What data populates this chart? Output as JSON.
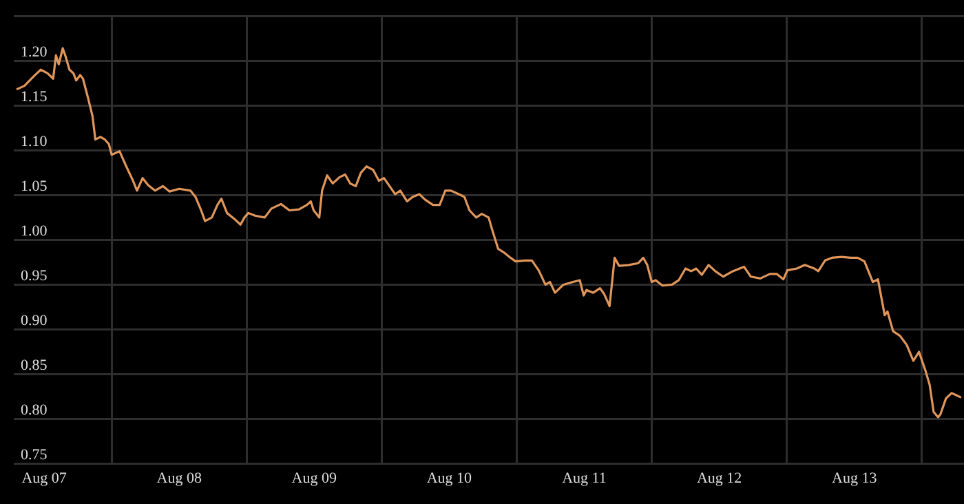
{
  "chart_data": {
    "type": "line",
    "grid": true,
    "marker": "none",
    "line_style": "solid",
    "legend": false,
    "xlim": [
      "--08-07T06:36",
      "--08-14T07:30"
    ],
    "xticks": [
      {
        "value": "--08-07T12:00",
        "label": "Aug 07"
      },
      {
        "value": "--08-08",
        "label": null
      },
      {
        "value": "--08-08T12:00",
        "label": "Aug 08"
      },
      {
        "value": "--08-09",
        "label": null
      },
      {
        "value": "--08-09T12:00",
        "label": "Aug 09"
      },
      {
        "value": "--08-10",
        "label": null
      },
      {
        "value": "--08-10T12:00",
        "label": "Aug 10"
      },
      {
        "value": "--08-11",
        "label": null
      },
      {
        "value": "--08-11T12:00",
        "label": "Aug 11"
      },
      {
        "value": "--08-12",
        "label": null
      },
      {
        "value": "--08-12T12:00",
        "label": "Aug 12"
      },
      {
        "value": "--08-13",
        "label": null
      },
      {
        "value": "--08-13T12:00",
        "label": "Aug 13"
      },
      {
        "value": "--08-14",
        "label": null
      }
    ],
    "ylim": [
      0.75,
      1.25
    ],
    "yticks": [
      {
        "value": 0.75,
        "label": "0.75"
      },
      {
        "value": 0.8,
        "label": "0.80"
      },
      {
        "value": 0.85,
        "label": "0.85"
      },
      {
        "value": 0.9,
        "label": "0.90"
      },
      {
        "value": 0.95,
        "label": "0.95"
      },
      {
        "value": 1.0,
        "label": "1.00"
      },
      {
        "value": 1.05,
        "label": "1.05"
      },
      {
        "value": 1.1,
        "label": "1.10"
      },
      {
        "value": 1.15,
        "label": "1.15"
      },
      {
        "value": 1.2,
        "label": "1.20"
      },
      {
        "value": 1.25,
        "label": null
      }
    ],
    "series": [
      {
        "color": "#e0965a",
        "x": [
          "--08-07T07:06",
          "--08-07T08:30",
          "--08-07T10:12",
          "--08-07T11:24",
          "--08-07T12:36",
          "--08-07T13:36",
          "--08-07T14:06",
          "--08-07T14:36",
          "--08-07T15:18",
          "--08-07T15:48",
          "--08-07T16:30",
          "--08-07T17:12",
          "--08-07T17:42",
          "--08-07T18:24",
          "--08-07T18:54",
          "--08-07T19:54",
          "--08-07T20:36",
          "--08-07T21:06",
          "--08-07T22:00",
          "--08-07T22:48",
          "--08-07T23:30",
          "--08-08T00:00",
          "--08-08T01:24",
          "--08-08T02:36",
          "--08-08T03:48",
          "--08-08T04:30",
          "--08-08T05:30",
          "--08-08T06:30",
          "--08-08T07:42",
          "--08-08T09:06",
          "--08-08T10:18",
          "--08-08T12:00",
          "--08-08T14:00",
          "--08-08T14:54",
          "--08-08T15:54",
          "--08-08T16:36",
          "--08-08T17:48",
          "--08-08T18:48",
          "--08-08T19:30",
          "--08-08T20:30",
          "--08-08T21:42",
          "--08-08T22:54",
          "--08-08T23:36",
          "--08-09T00:18",
          "--08-09T01:30",
          "--08-09T03:12",
          "--08-09T04:24",
          "--08-09T06:06",
          "--08-09T07:36",
          "--08-09T09:18",
          "--08-09T10:42",
          "--08-09T11:24",
          "--08-09T11:54",
          "--08-09T12:54",
          "--08-09T13:24",
          "--08-09T14:18",
          "--08-09T15:18",
          "--08-09T16:30",
          "--08-09T17:30",
          "--08-09T18:24",
          "--08-09T19:24",
          "--08-09T20:18",
          "--08-09T21:18",
          "--08-09T22:30",
          "--08-09T23:30",
          "--08-10T00:24",
          "--08-10T01:24",
          "--08-10T02:24",
          "--08-10T03:18",
          "--08-10T04:30",
          "--08-10T05:30",
          "--08-10T06:42",
          "--08-10T07:42",
          "--08-10T09:06",
          "--08-10T10:18",
          "--08-10T11:18",
          "--08-10T12:18",
          "--08-10T13:42",
          "--08-10T14:42",
          "--08-10T15:36",
          "--08-10T16:48",
          "--08-10T17:48",
          "--08-10T19:00",
          "--08-10T19:42",
          "--08-10T20:42",
          "--08-10T21:42",
          "--08-10T22:54",
          "--08-10T23:48",
          "--08-11T01:30",
          "--08-11T02:42",
          "--08-11T03:54",
          "--08-11T05:06",
          "--08-11T05:54",
          "--08-11T06:48",
          "--08-11T08:18",
          "--08-11T10:00",
          "--08-11T11:12",
          "--08-11T11:54",
          "--08-11T12:24",
          "--08-11T13:36",
          "--08-11T14:48",
          "--08-11T15:30",
          "--08-11T16:30",
          "--08-11T17:24",
          "--08-11T18:12",
          "--08-11T19:54",
          "--08-11T21:36",
          "--08-11T22:30",
          "--08-11T23:12",
          "--08-12T00:00",
          "--08-12T00:42",
          "--08-12T01:54",
          "--08-12T03:36",
          "--08-12T04:48",
          "--08-12T06:00",
          "--08-12T07:00",
          "--08-12T07:54",
          "--08-12T08:54",
          "--08-12T10:06",
          "--08-12T11:18",
          "--08-12T12:42",
          "--08-12T14:24",
          "--08-12T16:24",
          "--08-12T17:36",
          "--08-12T19:18",
          "--08-12T21:00",
          "--08-12T22:12",
          "--08-12T23:24",
          "--08-13T00:06",
          "--08-13T01:48",
          "--08-13T03:12",
          "--08-13T04:54",
          "--08-13T05:36",
          "--08-13T06:48",
          "--08-13T08:00",
          "--08-13T09:42",
          "--08-13T11:24",
          "--08-13T12:36",
          "--08-13T13:48",
          "--08-13T15:18",
          "--08-13T16:12",
          "--08-13T17:24",
          "--08-13T17:54",
          "--08-13T18:54",
          "--08-13T20:06",
          "--08-13T21:18",
          "--08-13T22:30",
          "--08-13T23:30",
          "--08-14T00:42",
          "--08-14T01:24",
          "--08-14T02:06",
          "--08-14T02:54",
          "--08-14T03:18",
          "--08-14T04:18",
          "--08-14T05:18",
          "--08-14T06:00",
          "--08-14T07:00"
        ],
        "values": [
          1.168,
          1.172,
          1.183,
          1.19,
          1.186,
          1.18,
          1.206,
          1.196,
          1.214,
          1.205,
          1.19,
          1.186,
          1.178,
          1.184,
          1.18,
          1.156,
          1.138,
          1.112,
          1.115,
          1.112,
          1.107,
          1.095,
          1.099,
          1.082,
          1.066,
          1.055,
          1.069,
          1.061,
          1.055,
          1.06,
          1.054,
          1.057,
          1.055,
          1.048,
          1.033,
          1.021,
          1.025,
          1.039,
          1.046,
          1.03,
          1.024,
          1.017,
          1.025,
          1.03,
          1.027,
          1.025,
          1.035,
          1.04,
          1.033,
          1.034,
          1.039,
          1.043,
          1.033,
          1.025,
          1.055,
          1.072,
          1.063,
          1.07,
          1.073,
          1.063,
          1.06,
          1.075,
          1.082,
          1.078,
          1.066,
          1.069,
          1.06,
          1.051,
          1.055,
          1.043,
          1.048,
          1.051,
          1.045,
          1.039,
          1.039,
          1.055,
          1.055,
          1.051,
          1.048,
          1.033,
          1.025,
          1.029,
          1.025,
          1.01,
          0.99,
          0.986,
          0.98,
          0.976,
          0.977,
          0.977,
          0.966,
          0.95,
          0.953,
          0.941,
          0.95,
          0.953,
          0.955,
          0.938,
          0.944,
          0.941,
          0.946,
          0.94,
          0.926,
          0.98,
          0.971,
          0.972,
          0.974,
          0.98,
          0.972,
          0.953,
          0.955,
          0.949,
          0.95,
          0.955,
          0.968,
          0.965,
          0.968,
          0.961,
          0.972,
          0.965,
          0.959,
          0.965,
          0.97,
          0.959,
          0.957,
          0.962,
          0.962,
          0.956,
          0.966,
          0.968,
          0.972,
          0.968,
          0.965,
          0.977,
          0.98,
          0.981,
          0.98,
          0.98,
          0.976,
          0.953,
          0.956,
          0.916,
          0.92,
          0.898,
          0.893,
          0.883,
          0.865,
          0.875,
          0.853,
          0.838,
          0.808,
          0.802,
          0.805,
          0.823,
          0.829,
          0.827,
          0.824
        ]
      }
    ]
  }
}
